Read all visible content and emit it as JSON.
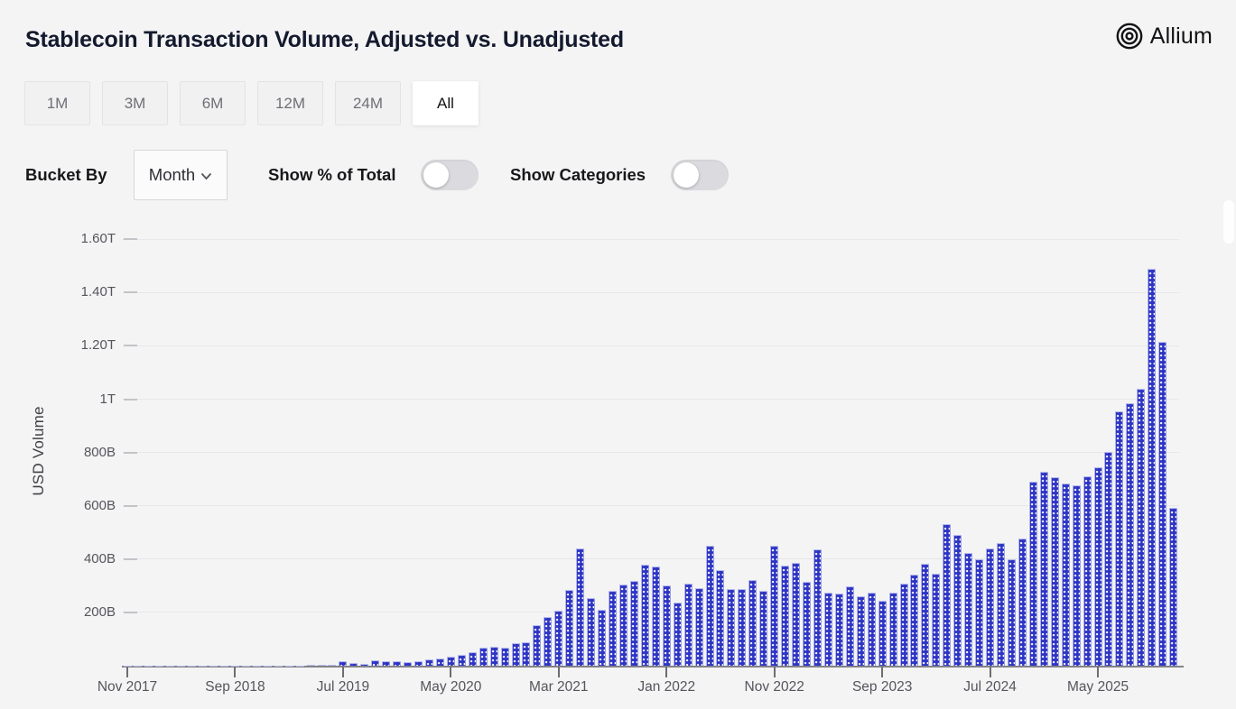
{
  "header": {
    "title": "Stablecoin Transaction Volume, Adjusted vs. Unadjusted",
    "logo_text": "Allium"
  },
  "range_buttons": [
    {
      "label": "1M",
      "active": false
    },
    {
      "label": "3M",
      "active": false
    },
    {
      "label": "6M",
      "active": false
    },
    {
      "label": "12M",
      "active": false
    },
    {
      "label": "24M",
      "active": false
    },
    {
      "label": "All",
      "active": true
    }
  ],
  "controls": {
    "bucket_by_label": "Bucket By",
    "bucket_by_value": "Month",
    "show_pct_label": "Show % of Total",
    "show_pct_on": false,
    "show_categories_label": "Show Categories",
    "show_categories_on": false
  },
  "chart_data": {
    "type": "bar",
    "title": "Stablecoin Transaction Volume, Adjusted vs. Unadjusted",
    "xlabel": "",
    "ylabel": "USD Volume",
    "unit": "billions of USD",
    "grid": true,
    "bar_color": "#2e35c4",
    "ylim": [
      0,
      1690
    ],
    "y_ticks": [
      {
        "label": "200B",
        "value": 200
      },
      {
        "label": "400B",
        "value": 400
      },
      {
        "label": "600B",
        "value": 600
      },
      {
        "label": "800B",
        "value": 800
      },
      {
        "label": "1T",
        "value": 1000
      },
      {
        "label": "1.20T",
        "value": 1200
      },
      {
        "label": "1.40T",
        "value": 1400
      },
      {
        "label": "1.60T",
        "value": 1600
      }
    ],
    "x_ticks": [
      {
        "label": "Nov 2017",
        "month_index": 0
      },
      {
        "label": "Sep 2018",
        "month_index": 10
      },
      {
        "label": "Jul 2019",
        "month_index": 20
      },
      {
        "label": "May 2020",
        "month_index": 30
      },
      {
        "label": "Mar 2021",
        "month_index": 40
      },
      {
        "label": "Jan 2022",
        "month_index": 50
      },
      {
        "label": "Nov 2022",
        "month_index": 60
      },
      {
        "label": "Sep 2023",
        "month_index": 70
      },
      {
        "label": "Jul 2024",
        "month_index": 80
      },
      {
        "label": "May 2025",
        "month_index": 90
      }
    ],
    "start_month": "2017-11",
    "bucket": "Month",
    "series": [
      {
        "name": "Stablecoin transaction volume (USD, billions)",
        "values": [
          1,
          1,
          1,
          1,
          1,
          1,
          1,
          1,
          1,
          1,
          1,
          1.5,
          2,
          2,
          2,
          2,
          3,
          4,
          6,
          4,
          19,
          12,
          10,
          21,
          17,
          17,
          16,
          17,
          24,
          30,
          35,
          42,
          52,
          68,
          73,
          70,
          85,
          88,
          153,
          184,
          207,
          287,
          440,
          254,
          213,
          283,
          306,
          319,
          381,
          373,
          302,
          238,
          308,
          294,
          452,
          362,
          291,
          291,
          322,
          283,
          452,
          379,
          387,
          317,
          437,
          277,
          272,
          299,
          263,
          277,
          245,
          277,
          309,
          345,
          383,
          347,
          532,
          491,
          426,
          401,
          440,
          463,
          401,
          478,
          693,
          729,
          710,
          684,
          680,
          713,
          745,
          805,
          955,
          985,
          1040,
          1490,
          1215,
          595
        ]
      }
    ]
  }
}
